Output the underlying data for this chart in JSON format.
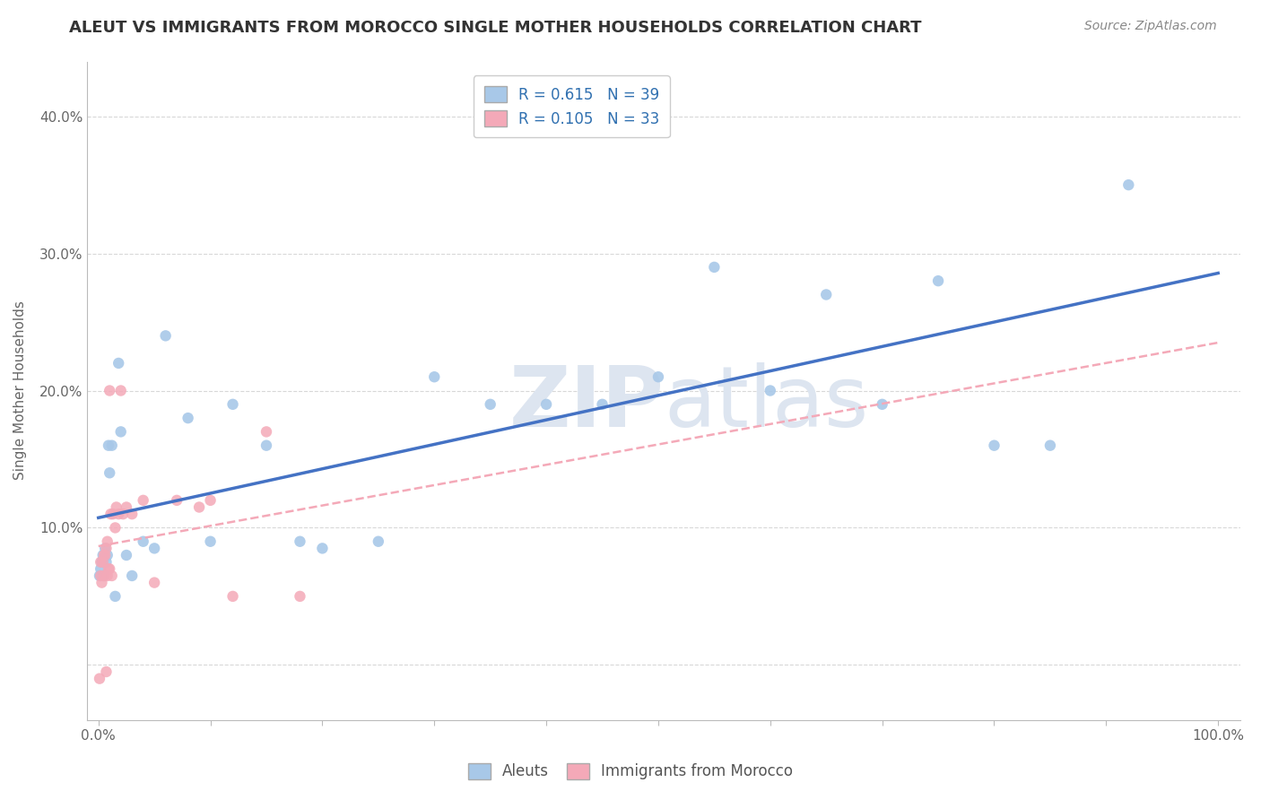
{
  "title": "ALEUT VS IMMIGRANTS FROM MOROCCO SINGLE MOTHER HOUSEHOLDS CORRELATION CHART",
  "source": "Source: ZipAtlas.com",
  "ylabel": "Single Mother Households",
  "xlim": [
    -0.01,
    1.02
  ],
  "ylim": [
    -0.04,
    0.44
  ],
  "xtick_positions": [
    0.0,
    0.1,
    0.2,
    0.3,
    0.4,
    0.5,
    0.6,
    0.7,
    0.8,
    0.9,
    1.0
  ],
  "xticklabels_sparse": {
    "0": "0.0%",
    "10": "100.0%"
  },
  "ytick_positions": [
    0.0,
    0.1,
    0.2,
    0.3,
    0.4
  ],
  "yticklabels": [
    "",
    "10.0%",
    "20.0%",
    "30.0%",
    "40.0%"
  ],
  "aleut_color": "#a8c8e8",
  "morocco_color": "#f4a9b8",
  "aleut_line_color": "#4472c4",
  "morocco_line_color": "#f4a9b8",
  "R_aleut": 0.615,
  "N_aleut": 39,
  "R_morocco": 0.105,
  "N_morocco": 33,
  "aleut_x": [
    0.001,
    0.002,
    0.003,
    0.004,
    0.005,
    0.006,
    0.007,
    0.008,
    0.009,
    0.01,
    0.012,
    0.015,
    0.018,
    0.02,
    0.025,
    0.03,
    0.04,
    0.05,
    0.06,
    0.08,
    0.1,
    0.12,
    0.15,
    0.18,
    0.2,
    0.25,
    0.3,
    0.35,
    0.4,
    0.45,
    0.5,
    0.55,
    0.6,
    0.65,
    0.7,
    0.75,
    0.8,
    0.85,
    0.92
  ],
  "aleut_y": [
    0.065,
    0.07,
    0.075,
    0.08,
    0.065,
    0.085,
    0.075,
    0.08,
    0.16,
    0.14,
    0.16,
    0.05,
    0.22,
    0.17,
    0.08,
    0.065,
    0.09,
    0.085,
    0.24,
    0.18,
    0.09,
    0.19,
    0.16,
    0.09,
    0.085,
    0.09,
    0.21,
    0.19,
    0.19,
    0.19,
    0.21,
    0.29,
    0.2,
    0.27,
    0.19,
    0.28,
    0.16,
    0.16,
    0.35
  ],
  "morocco_x": [
    0.001,
    0.002,
    0.002,
    0.003,
    0.004,
    0.005,
    0.005,
    0.006,
    0.007,
    0.007,
    0.008,
    0.008,
    0.009,
    0.01,
    0.01,
    0.011,
    0.012,
    0.013,
    0.015,
    0.016,
    0.018,
    0.02,
    0.022,
    0.025,
    0.03,
    0.04,
    0.05,
    0.07,
    0.09,
    0.1,
    0.12,
    0.15,
    0.18
  ],
  "morocco_y": [
    -0.01,
    0.065,
    0.075,
    0.06,
    0.075,
    0.065,
    0.08,
    0.08,
    -0.005,
    0.085,
    0.09,
    0.065,
    0.07,
    0.07,
    0.2,
    0.11,
    0.065,
    0.11,
    0.1,
    0.115,
    0.11,
    0.2,
    0.11,
    0.115,
    0.11,
    0.12,
    0.06,
    0.12,
    0.115,
    0.12,
    0.05,
    0.17,
    0.05
  ],
  "background_color": "#ffffff",
  "grid_color": "#d8d8d8",
  "watermark_color": "#dde5f0"
}
